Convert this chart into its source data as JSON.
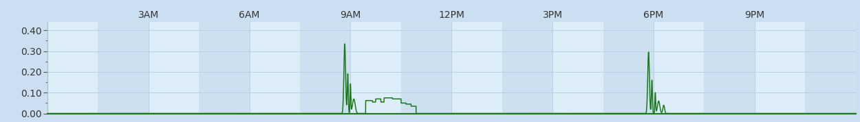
{
  "ylim": [
    0.0,
    0.44
  ],
  "yticks": [
    0.0,
    0.1,
    0.2,
    0.3,
    0.4
  ],
  "xtick_positions": [
    0,
    3,
    6,
    9,
    12,
    15,
    18,
    21,
    24
  ],
  "xtick_labels": [
    "",
    "3AM",
    "6AM",
    "9AM",
    "12PM",
    "3PM",
    "6PM",
    "9PM",
    ""
  ],
  "line_color": "#1a7a1a",
  "bg_color": "#ccdff0",
  "plot_bg_light": "#ddeef8",
  "plot_bg_dark": "#cce0ef",
  "grid_color": "#b8d0e8",
  "spine_color": "#aabbcc",
  "font_color": "#333333",
  "font_size": 10,
  "stripe_hours": [
    0,
    1.5,
    3,
    4.5,
    6,
    7.5,
    9,
    10.5,
    12,
    13.5,
    15,
    16.5,
    18,
    19.5,
    21,
    22.5,
    24
  ]
}
